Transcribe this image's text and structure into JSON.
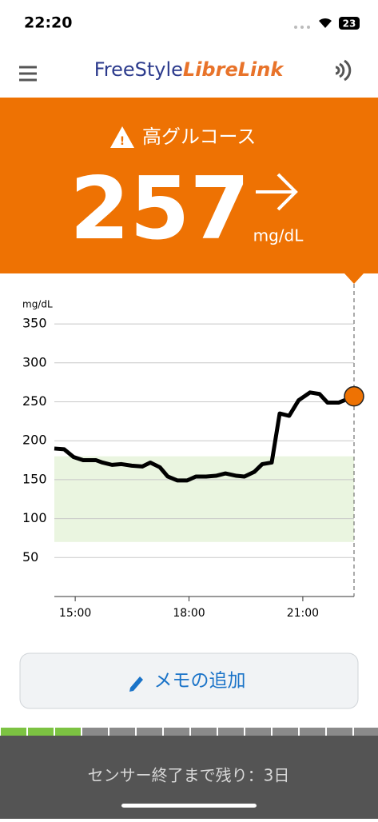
{
  "status_bar": {
    "time": "22:20",
    "battery": "23"
  },
  "header": {
    "brand_main": "FreeStyle",
    "brand_accent": "LibreLink"
  },
  "alert": {
    "label": "高グルコース",
    "value": 257,
    "unit": "mg/dL"
  },
  "chart_data": {
    "type": "line",
    "y_label": "mg/dL",
    "color": "#000000",
    "target_range": [
      70,
      180
    ],
    "target_color": "#eaf5e0",
    "x": [
      14.45,
      14.71,
      14.96,
      15.21,
      15.55,
      15.72,
      15.97,
      16.22,
      16.49,
      16.77,
      16.98,
      17.23,
      17.44,
      17.69,
      17.95,
      18.18,
      18.45,
      18.71,
      18.96,
      19.25,
      19.46,
      19.72,
      19.93,
      20.18,
      20.39,
      20.64,
      20.89,
      21.19,
      21.44,
      21.65,
      21.95,
      22.35
    ],
    "values": [
      190,
      189,
      179,
      175,
      175,
      172,
      169,
      170,
      168,
      167,
      172,
      166,
      154,
      149,
      149,
      154,
      154,
      155,
      158,
      155,
      154,
      160,
      170,
      172,
      235,
      232,
      252,
      262,
      260,
      249,
      249,
      257
    ],
    "xlim": [
      14.45,
      22.35
    ],
    "ylim": [
      0,
      370
    ],
    "xticks": [
      {
        "value": 15,
        "label": "15:00"
      },
      {
        "value": 18,
        "label": "18:00"
      },
      {
        "value": 21,
        "label": "21:00"
      }
    ],
    "yticks": [
      50,
      100,
      150,
      200,
      250,
      300,
      350
    ],
    "grid": true
  },
  "button": {
    "label": "メモの追加"
  },
  "footer": {
    "text": "センサー終了まで残り：3日"
  }
}
